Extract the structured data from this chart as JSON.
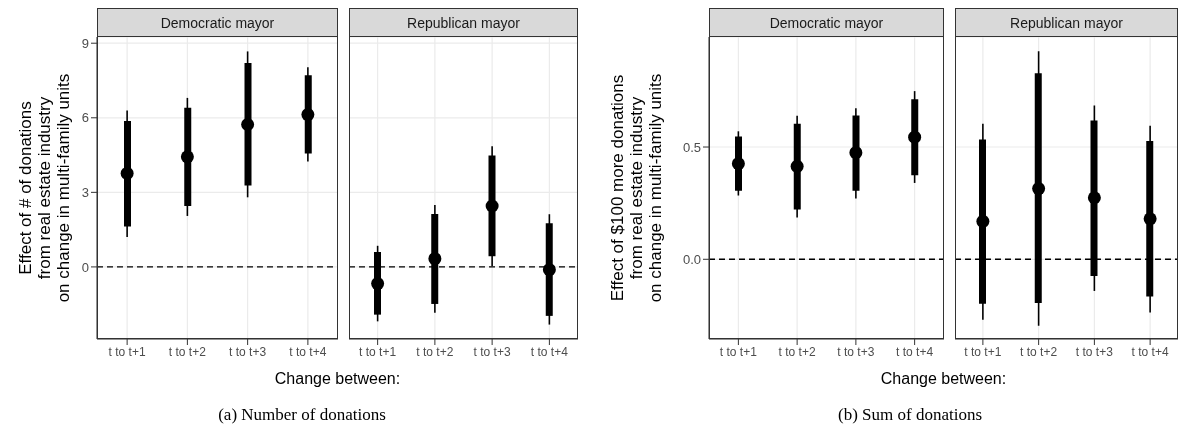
{
  "chart_data": [
    {
      "type": "scatter",
      "title": "Democratic mayor",
      "ylabel": "Effect of # of donations\nfrom real estate industry\non change in multi-family units",
      "xlabel": "Change between:",
      "annotations": [
        "(a) Number of donations"
      ],
      "categories": [
        "t to t+1",
        "t to t+2",
        "t to t+3",
        "t to t+4"
      ],
      "series": [
        {
          "type": "bar",
          "color": "#000000",
          "base": [
            1.63,
            2.45,
            3.28,
            4.56
          ],
          "values": [
            4.24,
            3.95,
            4.92,
            3.15
          ]
        },
        {
          "color": "#000000",
          "values": [
            3.76,
            4.43,
            5.73,
            6.13
          ],
          "errors": [
            [
              1.2,
              6.29
            ],
            [
              2.05,
              6.8
            ],
            [
              2.8,
              8.67
            ],
            [
              4.24,
              8.03
            ]
          ]
        }
      ],
      "ylim": [
        -2.9,
        9.25
      ],
      "yticks": [
        0,
        3,
        6,
        9
      ],
      "grid": true,
      "marker": "circle",
      "ref_lines": [
        {
          "axis": "y",
          "value": 0,
          "color": "#000000",
          "line_style": "dashed"
        }
      ]
    },
    {
      "type": "scatter",
      "title": "Republican mayor",
      "categories": [
        "t to t+1",
        "t to t+2",
        "t to t+3",
        "t to t+4"
      ],
      "series": [
        {
          "type": "bar",
          "color": "#000000",
          "base": [
            -1.92,
            -1.49,
            0.43,
            -1.97
          ],
          "values": [
            2.52,
            3.62,
            4.05,
            3.73
          ]
        },
        {
          "color": "#000000",
          "values": [
            -0.67,
            0.33,
            2.45,
            -0.11
          ],
          "errors": [
            [
              -2.19,
              0.85
            ],
            [
              -1.84,
              2.49
            ],
            [
              0.03,
              4.85
            ],
            [
              -2.32,
              2.12
            ]
          ]
        }
      ],
      "ylim": [
        -2.9,
        9.25
      ],
      "yticks": [
        0,
        3,
        6,
        9
      ],
      "tick_labels": "x",
      "grid": true,
      "marker": "circle",
      "ref_lines": [
        {
          "axis": "y",
          "value": 0,
          "color": "#000000",
          "line_style": "dashed"
        }
      ]
    },
    {
      "type": "scatter",
      "title": "Democratic mayor",
      "ylabel": "Effect of $100 more donations\nfrom real estate industry\non change in multi-family units",
      "xlabel": "Change between:",
      "annotations": [
        "(b) Sum of donations"
      ],
      "categories": [
        "t to t+1",
        "t to t+2",
        "t to t+3",
        "t to t+4"
      ],
      "series": [
        {
          "type": "bar",
          "color": "#000000",
          "base": [
            0.305,
            0.222,
            0.305,
            0.374
          ],
          "values": [
            0.242,
            0.382,
            0.335,
            0.339
          ]
        },
        {
          "color": "#000000",
          "values": [
            0.426,
            0.414,
            0.475,
            0.544
          ],
          "errors": [
            [
              0.284,
              0.57
            ],
            [
              0.186,
              0.639
            ],
            [
              0.271,
              0.673
            ],
            [
              0.34,
              0.749
            ]
          ]
        }
      ],
      "ylim": [
        -0.355,
        0.99
      ],
      "yticks": [
        {
          "value": 0,
          "label": "0.0"
        },
        0.5
      ],
      "grid": true,
      "marker": "circle",
      "ref_lines": [
        {
          "axis": "y",
          "value": 0,
          "color": "#000000",
          "line_style": "dashed"
        }
      ]
    },
    {
      "type": "scatter",
      "title": "Republican mayor",
      "categories": [
        "t to t+1",
        "t to t+2",
        "t to t+3",
        "t to t+4"
      ],
      "series": [
        {
          "type": "bar",
          "color": "#000000",
          "base": [
            -0.198,
            -0.195,
            -0.074,
            -0.166
          ],
          "values": [
            0.732,
            1.023,
            0.692,
            0.693
          ]
        },
        {
          "color": "#000000",
          "values": [
            0.169,
            0.315,
            0.274,
            0.18
          ],
          "errors": [
            [
              -0.269,
              0.604
            ],
            [
              -0.296,
              0.926
            ],
            [
              -0.141,
              0.685
            ],
            [
              -0.237,
              0.595
            ]
          ]
        }
      ],
      "ylim": [
        -0.355,
        0.99
      ],
      "yticks": [
        0,
        0.5
      ],
      "tick_labels": "x",
      "grid": true,
      "marker": "circle",
      "ref_lines": [
        {
          "axis": "y",
          "value": 0,
          "color": "#000000",
          "line_style": "dashed"
        }
      ]
    }
  ]
}
